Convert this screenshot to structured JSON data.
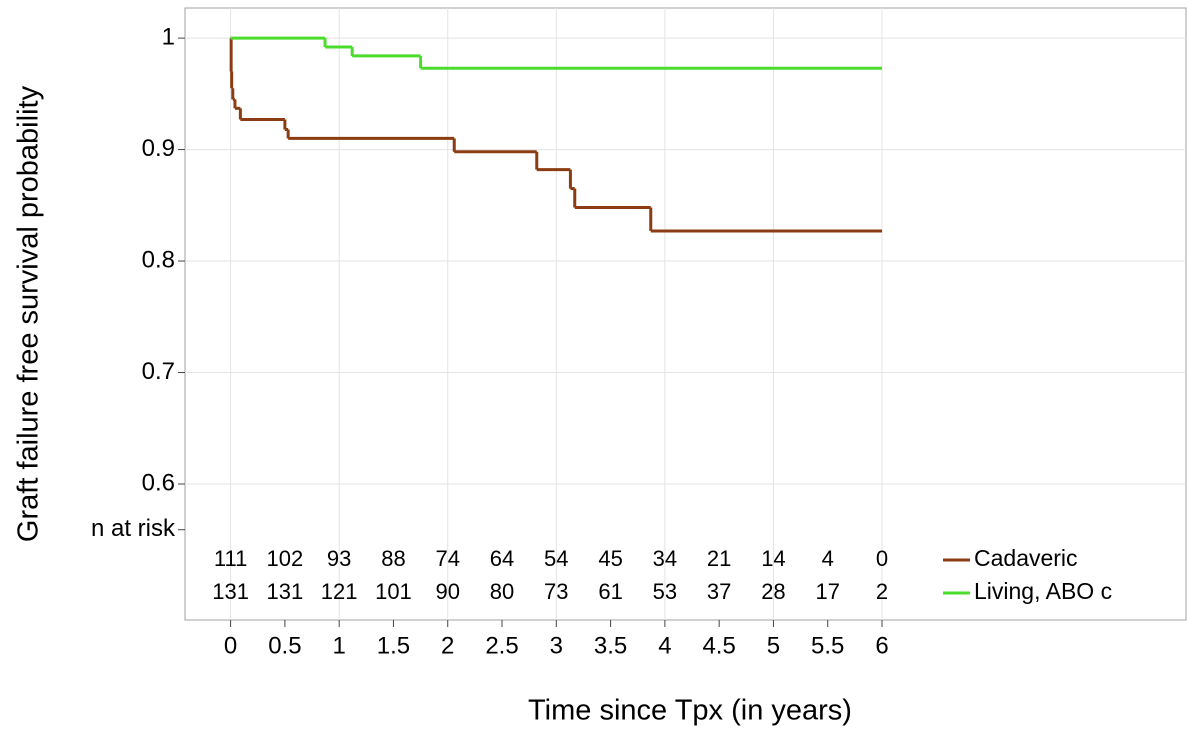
{
  "chart_data": {
    "type": "step",
    "xlabel": "Time since Tpx (in years)",
    "ylabel": "Graft failure free survival probability",
    "xlim": [
      -0.42,
      8.8
    ],
    "ylim": [
      0.478,
      1.027
    ],
    "xticks": [
      0,
      0.5,
      1,
      1.5,
      2,
      2.5,
      3,
      3.5,
      4,
      4.5,
      5,
      5.5,
      6
    ],
    "yticks": [
      0.6,
      0.7,
      0.8,
      0.9,
      1,
      {
        "value": 0.559,
        "label": "n at risk"
      }
    ],
    "grid": true,
    "legend": "right",
    "series": [
      {
        "name": "Cadaveric",
        "color": "#8b3c12",
        "x": [
          0,
          0.005,
          0.01,
          0.02,
          0.04,
          0.09,
          0.5,
          0.53,
          2.06,
          2.82,
          3.13,
          3.17,
          3.87,
          6
        ],
        "values": [
          1,
          0.97,
          0.955,
          0.945,
          0.937,
          0.927,
          0.918,
          0.91,
          0.898,
          0.882,
          0.865,
          0.848,
          0.827,
          0.827
        ],
        "n_at_risk": [
          111,
          102,
          93,
          88,
          74,
          64,
          54,
          45,
          34,
          21,
          14,
          4,
          0
        ]
      },
      {
        "name": "Living, ABO c",
        "color": "#4cdc2c",
        "x": [
          0,
          0.87,
          1.12,
          1.75,
          6
        ],
        "values": [
          1,
          0.992,
          0.984,
          0.973,
          0.973
        ],
        "n_at_risk": [
          131,
          131,
          121,
          101,
          90,
          80,
          73,
          61,
          53,
          37,
          28,
          17,
          2
        ]
      }
    ]
  }
}
